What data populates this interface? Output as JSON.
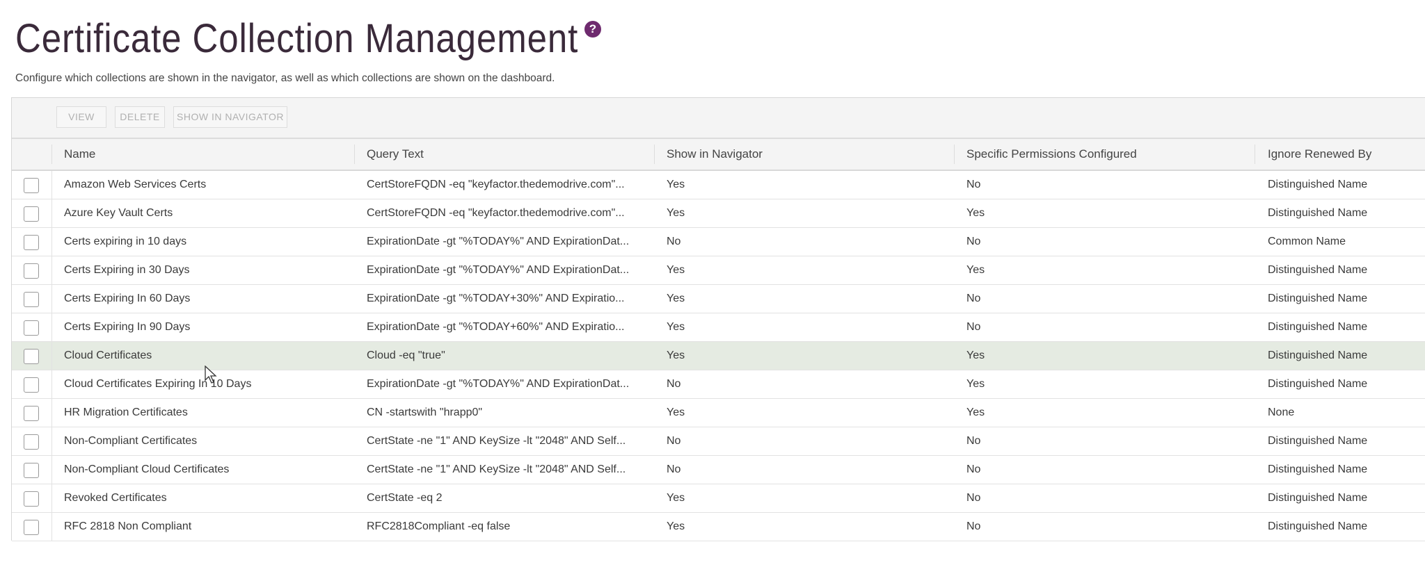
{
  "page": {
    "title": "Certificate Collection Management",
    "help_icon": "question-circle-icon",
    "subtitle": "Configure which collections are shown in the navigator, as well as which collections are shown on the dashboard."
  },
  "toolbar": {
    "view_label": "VIEW",
    "delete_label": "DELETE",
    "show_in_navigator_label": "SHOW IN NAVIGATOR"
  },
  "table": {
    "columns": [
      "Name",
      "Query Text",
      "Show in Navigator",
      "Specific Permissions Configured",
      "Ignore Renewed By"
    ],
    "hovered_row": 6,
    "rows": [
      {
        "name": "Amazon Web Services Certs",
        "query": "CertStoreFQDN -eq \"keyfactor.thedemodrive.com\"...",
        "nav": "Yes",
        "perm": "No",
        "ignore": "Distinguished Name"
      },
      {
        "name": "Azure Key Vault Certs",
        "query": "CertStoreFQDN -eq \"keyfactor.thedemodrive.com\"...",
        "nav": "Yes",
        "perm": "Yes",
        "ignore": "Distinguished Name"
      },
      {
        "name": "Certs expiring in 10 days",
        "query": "ExpirationDate -gt \"%TODAY%\" AND ExpirationDat...",
        "nav": "No",
        "perm": "No",
        "ignore": "Common Name"
      },
      {
        "name": "Certs Expiring in 30 Days",
        "query": "ExpirationDate -gt \"%TODAY%\" AND ExpirationDat...",
        "nav": "Yes",
        "perm": "Yes",
        "ignore": "Distinguished Name"
      },
      {
        "name": "Certs Expiring In 60 Days",
        "query": "ExpirationDate -gt \"%TODAY+30%\" AND Expiratio...",
        "nav": "Yes",
        "perm": "No",
        "ignore": "Distinguished Name"
      },
      {
        "name": "Certs Expiring In 90 Days",
        "query": "ExpirationDate -gt \"%TODAY+60%\" AND Expiratio...",
        "nav": "Yes",
        "perm": "No",
        "ignore": "Distinguished Name"
      },
      {
        "name": "Cloud Certificates",
        "query": "Cloud -eq \"true\"",
        "nav": "Yes",
        "perm": "Yes",
        "ignore": "Distinguished Name"
      },
      {
        "name": "Cloud Certificates Expiring In 10 Days",
        "query": "ExpirationDate -gt \"%TODAY%\" AND ExpirationDat...",
        "nav": "No",
        "perm": "Yes",
        "ignore": "Distinguished Name"
      },
      {
        "name": "HR Migration Certificates",
        "query": "CN -startswith \"hrapp0\"",
        "nav": "Yes",
        "perm": "Yes",
        "ignore": "None"
      },
      {
        "name": "Non-Compliant Certificates",
        "query": "CertState -ne \"1\" AND KeySize -lt \"2048\" AND Self...",
        "nav": "No",
        "perm": "No",
        "ignore": "Distinguished Name"
      },
      {
        "name": "Non-Compliant Cloud Certificates",
        "query": "CertState -ne \"1\" AND KeySize -lt \"2048\" AND Self...",
        "nav": "No",
        "perm": "No",
        "ignore": "Distinguished Name"
      },
      {
        "name": "Revoked Certificates",
        "query": "CertState -eq 2",
        "nav": "Yes",
        "perm": "No",
        "ignore": "Distinguished Name"
      },
      {
        "name": "RFC 2818 Non Compliant",
        "query": "RFC2818Compliant -eq false",
        "nav": "Yes",
        "perm": "No",
        "ignore": "Distinguished Name"
      }
    ]
  },
  "colors": {
    "accent": "#6e2a6e",
    "hover_row": "#e5ebe2"
  }
}
